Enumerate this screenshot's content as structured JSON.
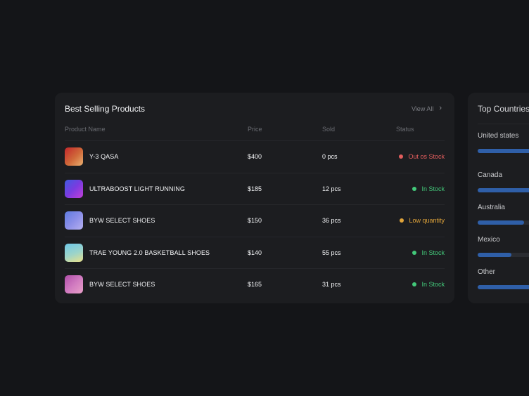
{
  "products": {
    "title": "Best Selling Products",
    "view_all": "View All",
    "columns": {
      "name": "Product Name",
      "price": "Price",
      "sold": "Sold",
      "status": "Status"
    },
    "rows": [
      {
        "name": "Y-3 QASA",
        "price": "$400",
        "sold": "0 pcs",
        "status": "Out os Stock",
        "status_color": "#e25d5d",
        "thumb": "linear-gradient(135deg,#c2262b 0%,#d06a3a 55%,#e8b070 100%)"
      },
      {
        "name": "ULTRABOOST LIGHT RUNNING",
        "price": "$185",
        "sold": "12 pcs",
        "status": "In Stock",
        "status_color": "#43c97a",
        "thumb": "linear-gradient(135deg,#3f5be0 0%,#7a3be0 50%,#c23fd8 100%)"
      },
      {
        "name": "BYW SELECT SHOES",
        "price": "$150",
        "sold": "36 pcs",
        "status": "Low quantity",
        "status_color": "#e0a43a",
        "thumb": "linear-gradient(135deg,#5e7be0 0%,#8a8ee8 50%,#b6b0f0 100%)"
      },
      {
        "name": "TRAE YOUNG 2.0 BASKETBALL SHOES",
        "price": "$140",
        "sold": "55 pcs",
        "status": "In Stock",
        "status_color": "#43c97a",
        "thumb": "linear-gradient(160deg,#6fc8e8 0%,#9ed4c8 55%,#e8e08a 100%)"
      },
      {
        "name": "BYW SELECT SHOES",
        "price": "$165",
        "sold": "31 pcs",
        "status": "In Stock",
        "status_color": "#43c97a",
        "thumb": "linear-gradient(135deg,#b04ea8 0%,#d07ac0 50%,#e8a0c8 100%)"
      }
    ]
  },
  "countries": {
    "title": "Top Countries",
    "bar_color": "#2f5fa8",
    "items": [
      {
        "name": "United states",
        "fraction": 1.0
      },
      {
        "name": "Canada",
        "fraction": 1.0
      },
      {
        "name": "Australia",
        "fraction": 0.47
      },
      {
        "name": "Mexico",
        "fraction": 0.34
      },
      {
        "name": "Other",
        "fraction": 1.0
      }
    ]
  }
}
